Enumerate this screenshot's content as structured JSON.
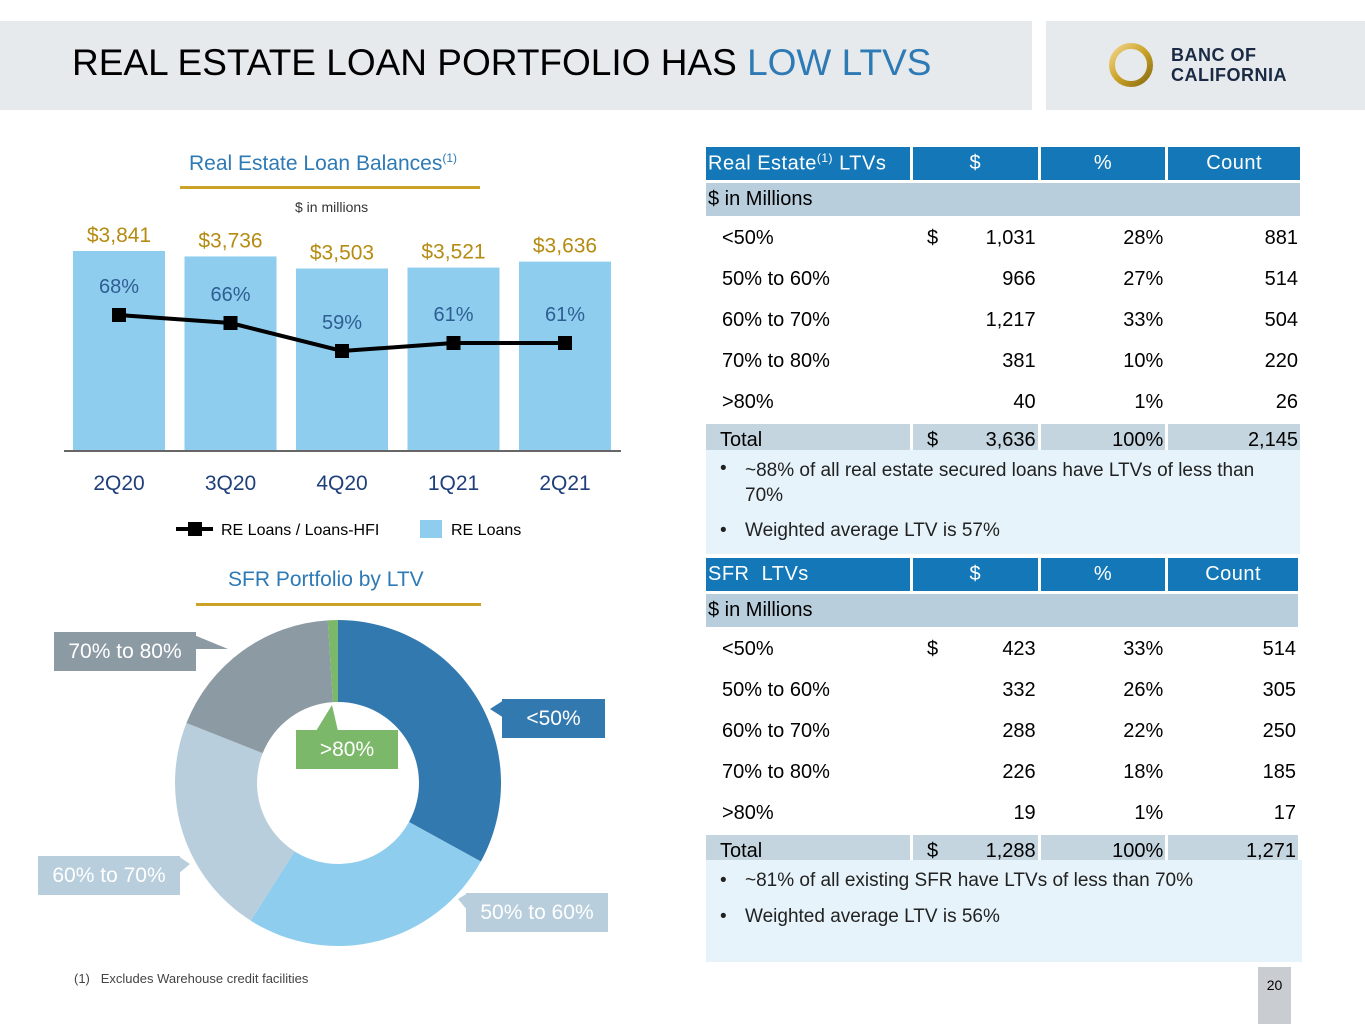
{
  "header": {
    "title_main": "REAL ESTATE LOAN PORTFOLIO HAS ",
    "title_accent": "LOW LTVS",
    "logo_line1": "BANC OF",
    "logo_line2": "CALIFORNIA"
  },
  "bar_chart": {
    "title": "Real Estate Loan Balances",
    "title_sup": "(1)",
    "unit": "$ in millions",
    "legend_line": "RE Loans / Loans-HFI",
    "legend_bar": "RE Loans"
  },
  "donut_chart": {
    "title": "SFR Portfolio by LTV",
    "callouts": {
      "lt50": "<50%",
      "b5060": "50% to 60%",
      "b6070": "60% to 70%",
      "b7080": "70% to 80%",
      "gt80": ">80%"
    }
  },
  "chart_data": [
    {
      "type": "bar",
      "title": "Real Estate Loan Balances(1)",
      "categories": [
        "2Q20",
        "3Q20",
        "4Q20",
        "1Q21",
        "2Q21"
      ],
      "value_labels": [
        "$3,841",
        "$3,736",
        "$3,503",
        "$3,521",
        "$3,636"
      ],
      "series": [
        {
          "name": "RE Loans",
          "type": "bar",
          "values": [
            3841,
            3736,
            3503,
            3521,
            3636
          ]
        },
        {
          "name": "RE Loans / Loans-HFI",
          "type": "line",
          "values": [
            68,
            66,
            59,
            61,
            61
          ],
          "labels": [
            "68%",
            "66%",
            "59%",
            "61%",
            "61%"
          ]
        }
      ],
      "colors": {
        "bar": "#8ecdee",
        "line": "#000000",
        "value_label": "#b58b12"
      },
      "ylim": [
        0,
        3841
      ],
      "legend": "bottom"
    },
    {
      "type": "pie",
      "title": "SFR Portfolio by LTV",
      "labels": [
        "<50%",
        "50% to 60%",
        "60% to 70%",
        "70% to 80%",
        ">80%"
      ],
      "values": [
        33,
        26,
        22,
        18,
        1
      ],
      "colors": [
        "#3279b0",
        "#8ecdee",
        "#b8cedc",
        "#8c9aa3",
        "#7cb86a"
      ],
      "donut": true
    }
  ],
  "re_table": {
    "headers": [
      "Real Estate",
      "(1)",
      " LTVs",
      "$",
      "%",
      "Count"
    ],
    "subheader": "$ in Millions",
    "rows": [
      {
        "label": "<50%",
        "cur": "$",
        "amt": "1,031",
        "pct": "28%",
        "cnt": "881"
      },
      {
        "label": "50% to 60%",
        "cur": "",
        "amt": "966",
        "pct": "27%",
        "cnt": "514"
      },
      {
        "label": "60% to 70%",
        "cur": "",
        "amt": "1,217",
        "pct": "33%",
        "cnt": "504"
      },
      {
        "label": "70% to 80%",
        "cur": "",
        "amt": "381",
        "pct": "10%",
        "cnt": "220"
      },
      {
        "label": ">80%",
        "cur": "",
        "amt": "40",
        "pct": "1%",
        "cnt": "26"
      }
    ],
    "total": {
      "label": "Total",
      "cur": "$",
      "amt": "3,636",
      "pct": "100%",
      "cnt": "2,145"
    },
    "bullets": [
      "~88% of all real estate secured loans have LTVs of less than 70%",
      "Weighted average LTV is 57%"
    ]
  },
  "sfr_table": {
    "headers": [
      "SFR  LTVs",
      "$",
      "%",
      "Count"
    ],
    "subheader": "$ in Millions",
    "rows": [
      {
        "label": "<50%",
        "cur": "$",
        "amt": "423",
        "pct": "33%",
        "cnt": "514"
      },
      {
        "label": "50% to 60%",
        "cur": "",
        "amt": "332",
        "pct": "26%",
        "cnt": "305"
      },
      {
        "label": "60% to 70%",
        "cur": "",
        "amt": "288",
        "pct": "22%",
        "cnt": "250"
      },
      {
        "label": "70% to 80%",
        "cur": "",
        "amt": "226",
        "pct": "18%",
        "cnt": "185"
      },
      {
        "label": ">80%",
        "cur": "",
        "amt": "19",
        "pct": "1%",
        "cnt": "17"
      }
    ],
    "total": {
      "label": "Total",
      "cur": "$",
      "amt": "1,288",
      "pct": "100%",
      "cnt": "1,271"
    },
    "bullets": [
      "~81% of all existing SFR have LTVs of less than 70%",
      "Weighted average LTV is 56%"
    ]
  },
  "footnote": "(1)   Excludes Warehouse credit facilities",
  "page_number": "20"
}
